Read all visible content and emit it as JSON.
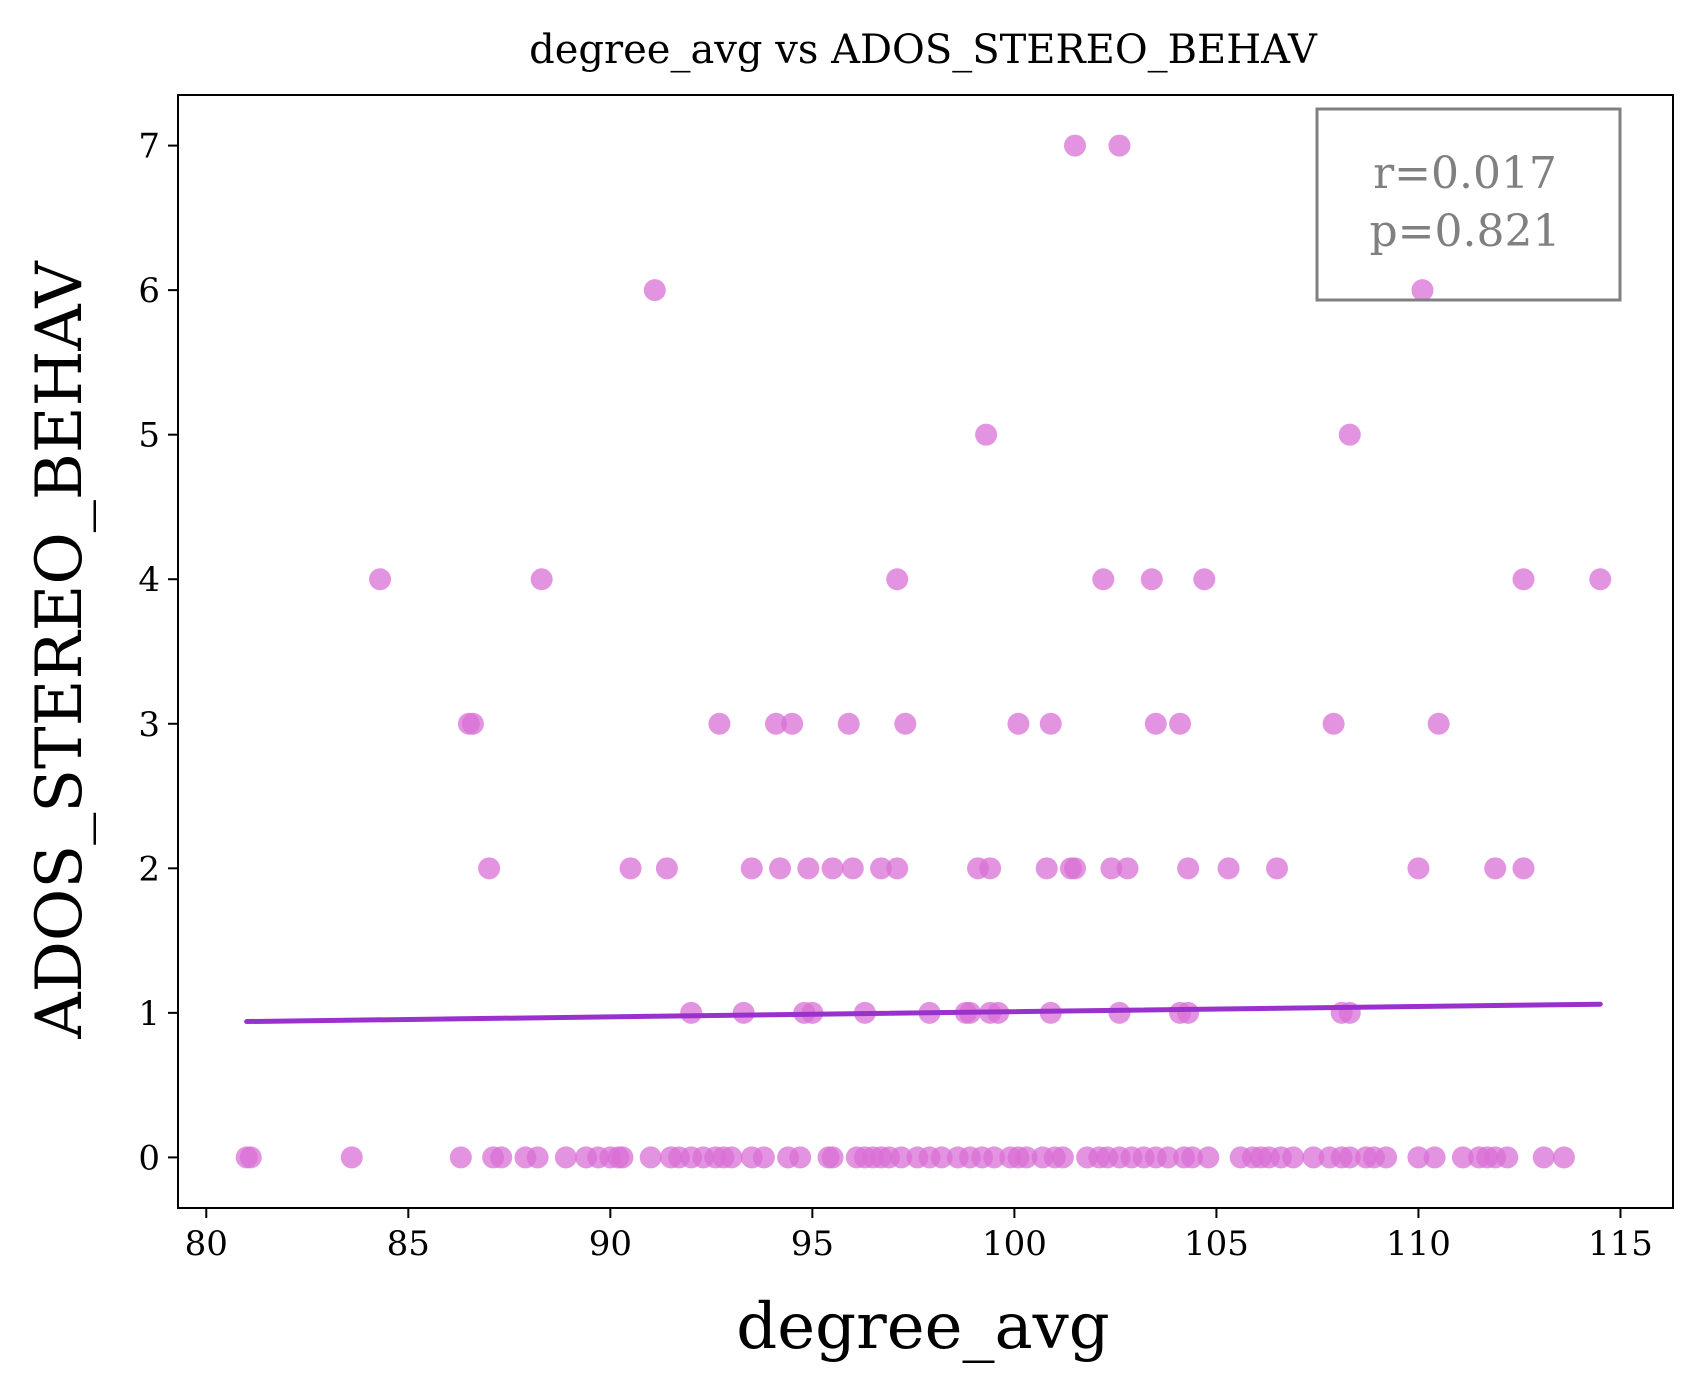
{
  "chart_data": {
    "type": "scatter",
    "title": "degree_avg vs ADOS_STEREO_BEHAV",
    "xlabel": "degree_avg",
    "ylabel": "ADOS_STEREO_BEHAV",
    "xlim": [
      79.3,
      116.3
    ],
    "ylim": [
      -0.35,
      7.35
    ],
    "xticks": [
      80,
      85,
      90,
      95,
      100,
      105,
      110,
      115
    ],
    "yticks": [
      0,
      1,
      2,
      3,
      4,
      5,
      6,
      7
    ],
    "grid": false,
    "annotation": {
      "lines": [
        "r=0.017",
        "p=0.821"
      ],
      "position": "top-right"
    },
    "colors": {
      "points": "#DA70D6",
      "fit_line": "#9932CC",
      "annotation_text": "#808080",
      "annotation_border": "#808080"
    },
    "fit_line": {
      "x": [
        81.0,
        114.5
      ],
      "y": [
        0.94,
        1.06
      ]
    },
    "series": [
      {
        "points": [
          [
            102.6,
            7
          ],
          [
            101.5,
            7
          ],
          [
            91.1,
            6
          ],
          [
            110.1,
            6
          ],
          [
            99.3,
            5
          ],
          [
            108.3,
            5
          ],
          [
            84.3,
            4
          ],
          [
            88.3,
            4
          ],
          [
            97.1,
            4
          ],
          [
            102.2,
            4
          ],
          [
            103.4,
            4
          ],
          [
            104.7,
            4
          ],
          [
            112.6,
            4
          ],
          [
            114.5,
            4
          ],
          [
            86.5,
            3
          ],
          [
            86.6,
            3
          ],
          [
            92.7,
            3
          ],
          [
            94.1,
            3
          ],
          [
            94.5,
            3
          ],
          [
            95.9,
            3
          ],
          [
            97.3,
            3
          ],
          [
            100.1,
            3
          ],
          [
            100.9,
            3
          ],
          [
            103.5,
            3
          ],
          [
            104.1,
            3
          ],
          [
            107.9,
            3
          ],
          [
            110.5,
            3
          ],
          [
            87.0,
            2
          ],
          [
            90.5,
            2
          ],
          [
            91.4,
            2
          ],
          [
            93.5,
            2
          ],
          [
            94.2,
            2
          ],
          [
            94.9,
            2
          ],
          [
            95.5,
            2
          ],
          [
            96.0,
            2
          ],
          [
            96.7,
            2
          ],
          [
            97.1,
            2
          ],
          [
            99.1,
            2
          ],
          [
            99.4,
            2
          ],
          [
            100.8,
            2
          ],
          [
            101.4,
            2
          ],
          [
            101.5,
            2
          ],
          [
            102.4,
            2
          ],
          [
            102.8,
            2
          ],
          [
            104.3,
            2
          ],
          [
            105.3,
            2
          ],
          [
            106.5,
            2
          ],
          [
            110.0,
            2
          ],
          [
            111.9,
            2
          ],
          [
            112.6,
            2
          ],
          [
            92.0,
            1
          ],
          [
            93.3,
            1
          ],
          [
            94.8,
            1
          ],
          [
            95.0,
            1
          ],
          [
            96.3,
            1
          ],
          [
            97.9,
            1
          ],
          [
            98.8,
            1
          ],
          [
            98.9,
            1
          ],
          [
            99.4,
            1
          ],
          [
            99.6,
            1
          ],
          [
            100.9,
            1
          ],
          [
            102.6,
            1
          ],
          [
            104.1,
            1
          ],
          [
            104.3,
            1
          ],
          [
            108.1,
            1
          ],
          [
            108.3,
            1
          ],
          [
            81.0,
            0
          ],
          [
            81.1,
            0
          ],
          [
            83.6,
            0
          ],
          [
            86.3,
            0
          ],
          [
            87.1,
            0
          ],
          [
            87.3,
            0
          ],
          [
            87.9,
            0
          ],
          [
            88.2,
            0
          ],
          [
            88.9,
            0
          ],
          [
            89.4,
            0
          ],
          [
            89.7,
            0
          ],
          [
            90.0,
            0
          ],
          [
            90.2,
            0
          ],
          [
            90.3,
            0
          ],
          [
            91.0,
            0
          ],
          [
            91.5,
            0
          ],
          [
            91.7,
            0
          ],
          [
            92.0,
            0
          ],
          [
            92.3,
            0
          ],
          [
            92.6,
            0
          ],
          [
            92.8,
            0
          ],
          [
            93.0,
            0
          ],
          [
            93.5,
            0
          ],
          [
            93.8,
            0
          ],
          [
            94.4,
            0
          ],
          [
            94.7,
            0
          ],
          [
            95.4,
            0
          ],
          [
            95.5,
            0
          ],
          [
            96.1,
            0
          ],
          [
            96.3,
            0
          ],
          [
            96.5,
            0
          ],
          [
            96.7,
            0
          ],
          [
            96.9,
            0
          ],
          [
            97.2,
            0
          ],
          [
            97.6,
            0
          ],
          [
            97.9,
            0
          ],
          [
            98.2,
            0
          ],
          [
            98.6,
            0
          ],
          [
            98.9,
            0
          ],
          [
            99.2,
            0
          ],
          [
            99.5,
            0
          ],
          [
            99.9,
            0
          ],
          [
            100.1,
            0
          ],
          [
            100.3,
            0
          ],
          [
            100.7,
            0
          ],
          [
            101.0,
            0
          ],
          [
            101.2,
            0
          ],
          [
            101.8,
            0
          ],
          [
            102.1,
            0
          ],
          [
            102.3,
            0
          ],
          [
            102.6,
            0
          ],
          [
            102.9,
            0
          ],
          [
            103.2,
            0
          ],
          [
            103.5,
            0
          ],
          [
            103.8,
            0
          ],
          [
            104.2,
            0
          ],
          [
            104.4,
            0
          ],
          [
            104.8,
            0
          ],
          [
            105.6,
            0
          ],
          [
            105.9,
            0
          ],
          [
            106.1,
            0
          ],
          [
            106.3,
            0
          ],
          [
            106.6,
            0
          ],
          [
            106.9,
            0
          ],
          [
            107.4,
            0
          ],
          [
            107.8,
            0
          ],
          [
            108.1,
            0
          ],
          [
            108.3,
            0
          ],
          [
            108.7,
            0
          ],
          [
            108.9,
            0
          ],
          [
            109.2,
            0
          ],
          [
            110.0,
            0
          ],
          [
            110.4,
            0
          ],
          [
            111.1,
            0
          ],
          [
            111.5,
            0
          ],
          [
            111.7,
            0
          ],
          [
            111.9,
            0
          ],
          [
            112.2,
            0
          ],
          [
            113.1,
            0
          ],
          [
            113.6,
            0
          ]
        ]
      }
    ]
  }
}
